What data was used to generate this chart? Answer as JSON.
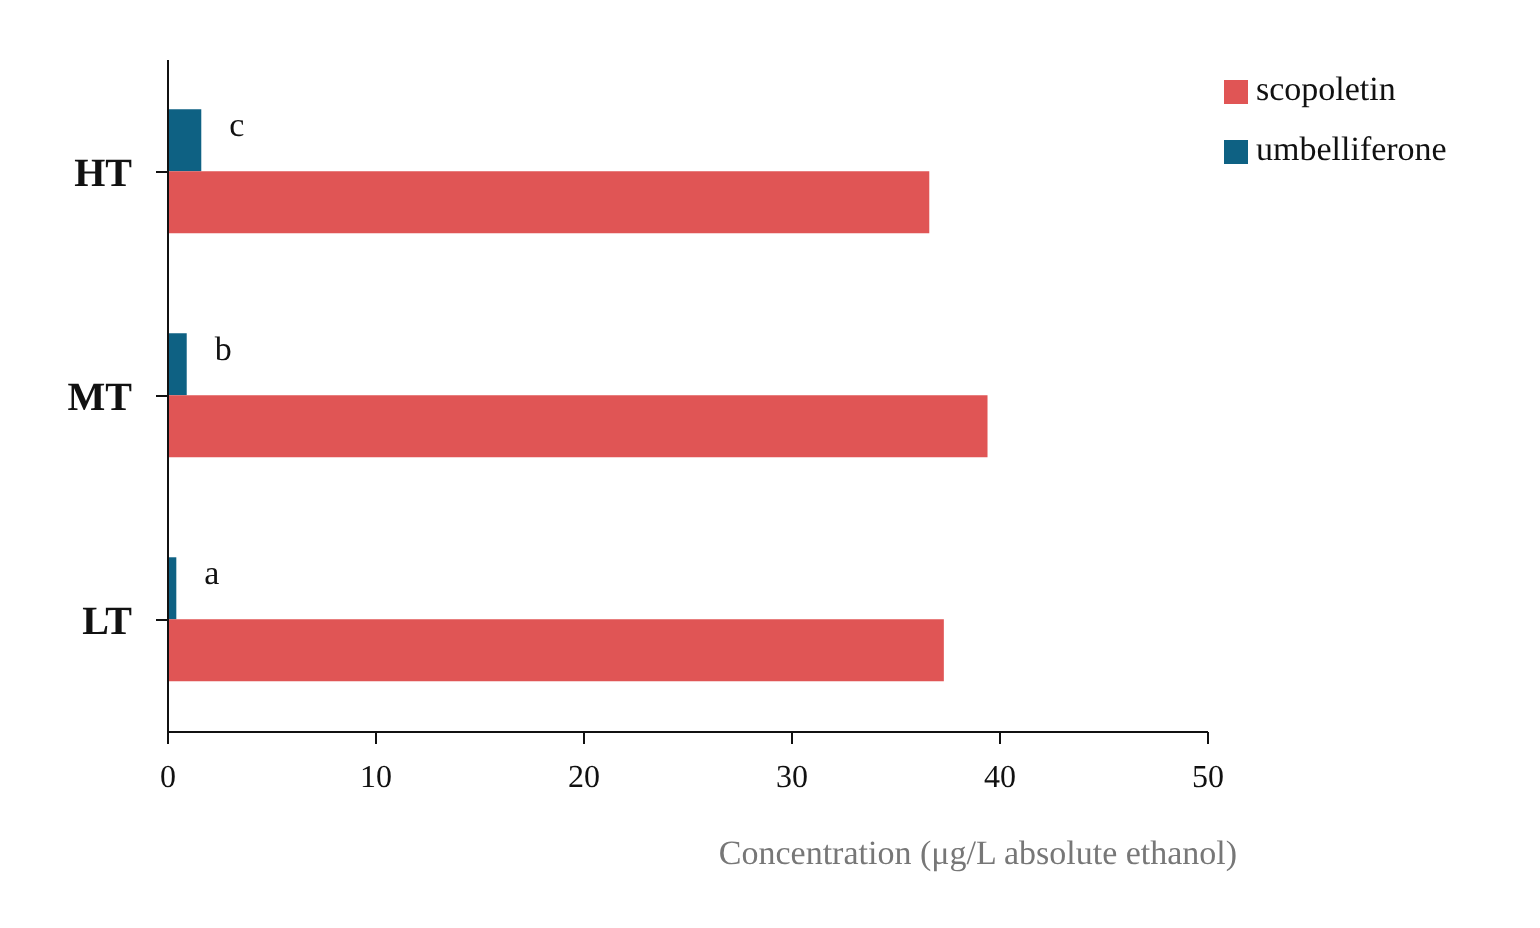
{
  "chart_data": {
    "type": "bar",
    "orientation": "horizontal",
    "xlabel": "Concentration  (μg/L absolute ethanol)",
    "categories": [
      "HT",
      "MT",
      "LT"
    ],
    "series": [
      {
        "name": "umbelliferone",
        "color": "#0e6183",
        "values": [
          1.6,
          0.9,
          0.4
        ]
      },
      {
        "name": "scopoletin",
        "color": "#e05555",
        "values": [
          36.6,
          39.4,
          37.3
        ]
      }
    ],
    "xlim": [
      0,
      50
    ],
    "xticks": [
      0,
      10,
      20,
      30,
      40,
      50
    ],
    "grid": false,
    "legend": "top right",
    "annotations": [
      {
        "text": "c",
        "x": 1.6,
        "y": "HT"
      },
      {
        "text": "b",
        "x": 0.9,
        "y": "MT"
      },
      {
        "text": "a",
        "x": 0.4,
        "y": "LT"
      }
    ]
  }
}
